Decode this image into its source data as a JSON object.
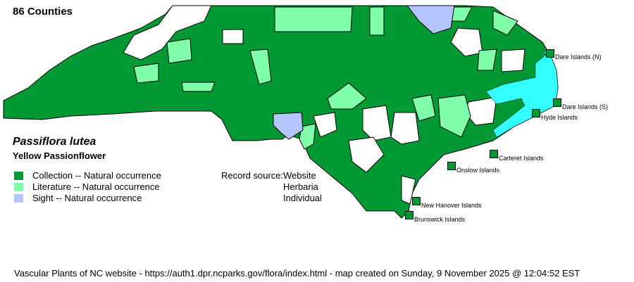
{
  "county_count": "86 Counties",
  "species": {
    "scientific_name": "Passiflora lutea",
    "common_name": "Yellow Passionflower"
  },
  "legend": [
    {
      "label": "Collection -- Natural occurrence",
      "color": "#009933"
    },
    {
      "label": "Literature -- Natural occurrence",
      "color": "#80ffaa"
    },
    {
      "label": "Sight -- Natural occurrence",
      "color": "#b3c6ff"
    }
  ],
  "record_source": {
    "label": "Record source:",
    "values": [
      "Website",
      "Herbaria",
      "Individual"
    ]
  },
  "islands": [
    "Dare Islands (N)",
    "Dare Islands (S)",
    "Hyde Islands",
    "Carteret Islands",
    "Onslow Islands",
    "New Hanover Islands",
    "Brunswick Islands"
  ],
  "colors": {
    "none": "#ffffff",
    "water": "#33ffff"
  },
  "footer": "Vascular Plants of NC website - https://auth1.dpr.ncparks.gov/flora/index.html - map created on Sunday, 9 November 2025 @ 12:04:52 EST"
}
